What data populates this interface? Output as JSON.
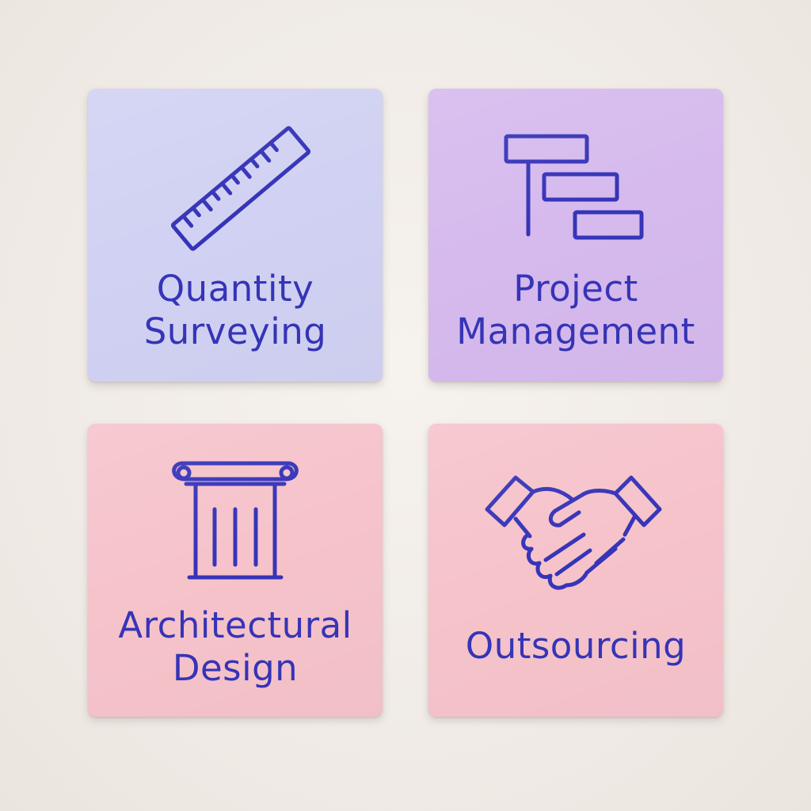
{
  "tiles": [
    {
      "id": "quantity-surveying",
      "line1": "Quantity",
      "line2": "Surveying",
      "icon": "ruler-icon",
      "bg_color": "#d1d2f3"
    },
    {
      "id": "project-management",
      "line1": "Project",
      "line2": "Management",
      "icon": "gantt-chart-icon",
      "bg_color": "#d6baee"
    },
    {
      "id": "architectural-design",
      "line1": "Architectural",
      "line2": "Design",
      "icon": "column-icon",
      "bg_color": "#f6c3cb"
    },
    {
      "id": "outsourcing",
      "line1": "Outsourcing",
      "icon": "handshake-icon",
      "bg_color": "#f6c3cb"
    }
  ],
  "colors": {
    "ink": "#3634b8",
    "wall": "#f1ece7"
  }
}
